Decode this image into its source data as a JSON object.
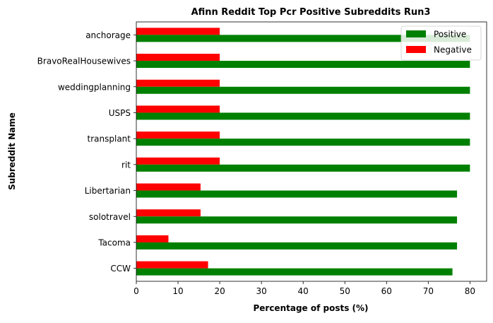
{
  "chart_data": {
    "type": "bar",
    "orientation": "horizontal",
    "title": "Afinn Reddit Top Pcr Positive Subreddits Run3",
    "xlabel": "Percentage of posts (%)",
    "ylabel": "Subreddit Name",
    "xlim": [
      0,
      84
    ],
    "xticks": [
      0,
      10,
      20,
      30,
      40,
      50,
      60,
      70,
      80
    ],
    "grid": false,
    "legend_position": "top-right",
    "categories": [
      "anchorage",
      "BravoRealHousewives",
      "weddingplanning",
      "USPS",
      "transplant",
      "rit",
      "Libertarian",
      "solotravel",
      "Tacoma",
      "CCW"
    ],
    "series": [
      {
        "name": "Positive",
        "color": "#008000",
        "values": [
          80.0,
          80.0,
          80.0,
          80.0,
          80.0,
          80.0,
          76.9,
          76.9,
          76.9,
          75.8
        ]
      },
      {
        "name": "Negative",
        "color": "#ff0000",
        "values": [
          20.0,
          20.0,
          20.0,
          20.0,
          20.0,
          20.0,
          15.4,
          15.4,
          7.7,
          17.2
        ]
      }
    ]
  }
}
